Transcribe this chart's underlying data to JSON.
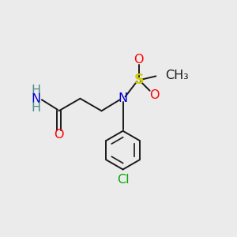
{
  "background_color": "#ebebeb",
  "bond_color": "#1a1a1a",
  "atom_colors": {
    "O": "#ff0000",
    "N": "#0000cc",
    "S": "#cccc00",
    "Cl": "#00aa00",
    "H": "#4a8a8a",
    "C": "#1a1a1a"
  },
  "figsize": [
    3.0,
    3.0
  ],
  "dpi": 100,
  "xlim": [
    0,
    10
  ],
  "ylim": [
    0,
    10
  ]
}
